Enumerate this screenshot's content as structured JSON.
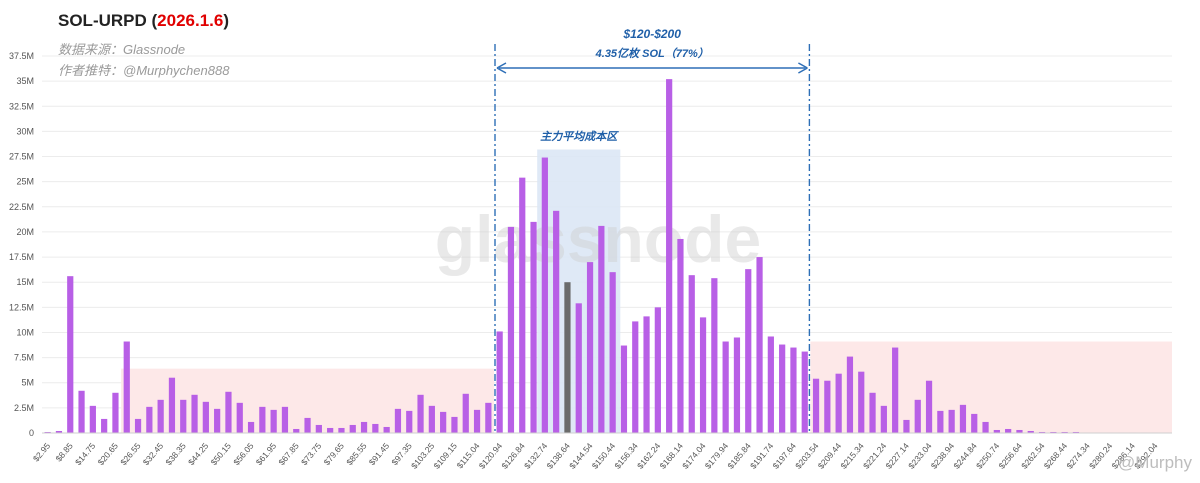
{
  "header": {
    "title_prefix": "SOL-URPD (",
    "title_date": "2026.1.6",
    "title_suffix": ")",
    "source": "数据来源：Glassnode",
    "author": "作者推特：@Murphychen888"
  },
  "watermark": "glassnode",
  "credit": "@Murphy",
  "colors": {
    "bar": "#b85fe6",
    "highlight_bar": "#6b6b6b",
    "range_line": "#2e6fb7",
    "cost_zone": "#dbe7f5",
    "side_zone": "#fde8e8"
  },
  "chart_data": {
    "type": "bar",
    "title": "SOL-URPD (2026.1.6)",
    "xlabel": "",
    "ylabel": "",
    "ylim": [
      0,
      37.5
    ],
    "y_ticks": [
      "0",
      "2.5M",
      "5M",
      "7.5M",
      "10M",
      "12.5M",
      "15M",
      "17.5M",
      "20M",
      "22.5M",
      "25M",
      "27.5M",
      "30M",
      "32.5M",
      "35M",
      "37.5M"
    ],
    "x_tick_labels": [
      "$2.95",
      "$8.85",
      "$14.75",
      "$20.65",
      "$26.55",
      "$32.45",
      "$38.35",
      "$44.25",
      "$50.15",
      "$56.05",
      "$61.95",
      "$67.85",
      "$73.75",
      "$79.65",
      "$85.55",
      "$91.45",
      "$97.35",
      "$103.25",
      "$109.15",
      "$115.04",
      "$120.94",
      "$126.84",
      "$132.74",
      "$138.64",
      "$144.54",
      "$150.44",
      "$156.34",
      "$162.24",
      "$168.14",
      "$174.04",
      "$179.94",
      "$185.84",
      "$191.74",
      "$197.64",
      "$203.54",
      "$209.44",
      "$215.34",
      "$221.24",
      "$227.14",
      "$233.04",
      "$238.94",
      "$244.84",
      "$250.74",
      "$256.64",
      "$262.54",
      "$268.44",
      "$274.34",
      "$280.24",
      "$286.14",
      "$292.04"
    ],
    "values": [
      0.1,
      0.2,
      15.6,
      4.2,
      2.7,
      1.4,
      4.0,
      9.1,
      1.4,
      2.6,
      3.3,
      5.5,
      3.3,
      3.8,
      3.1,
      2.4,
      4.1,
      3.0,
      1.1,
      2.6,
      2.3,
      2.6,
      0.4,
      1.5,
      0.8,
      0.5,
      0.5,
      0.8,
      1.1,
      0.9,
      0.6,
      2.4,
      2.2,
      3.8,
      2.7,
      2.1,
      1.6,
      3.9,
      2.3,
      3.0,
      10.1,
      20.5,
      25.4,
      21.0,
      27.4,
      22.1,
      15.0,
      12.9,
      17.0,
      20.6,
      16.0,
      8.7,
      11.1,
      11.6,
      12.5,
      35.2,
      19.3,
      15.7,
      11.5,
      15.4,
      9.1,
      9.5,
      16.3,
      17.5,
      9.6,
      8.8,
      8.5,
      8.1,
      5.4,
      5.2,
      5.9,
      7.6,
      6.1,
      4.0,
      2.7,
      8.5,
      1.3,
      3.3,
      5.2,
      2.2,
      2.3,
      2.8,
      1.9,
      1.1,
      0.3,
      0.4,
      0.3,
      0.2,
      0.1,
      0.1,
      0.1,
      0.1,
      0.05,
      0.05,
      0.05,
      0.05,
      0.05,
      0.05,
      0.05,
      0.05
    ],
    "highlight_index": 46,
    "range_annotation": {
      "label": "$120-$200",
      "sublabel": "4.35亿枚 SOL（77%）",
      "from_index": 40,
      "to_index": 67
    },
    "cost_zone": {
      "label": "主力平均成本区",
      "from_index": 44,
      "to_index": 50,
      "top_value": 28.2
    },
    "side_zones": [
      {
        "from_index": 7,
        "to_index": 39,
        "top_value": 6.4
      },
      {
        "from_index": 68,
        "to_index": 99,
        "top_value": 9.1
      }
    ]
  }
}
